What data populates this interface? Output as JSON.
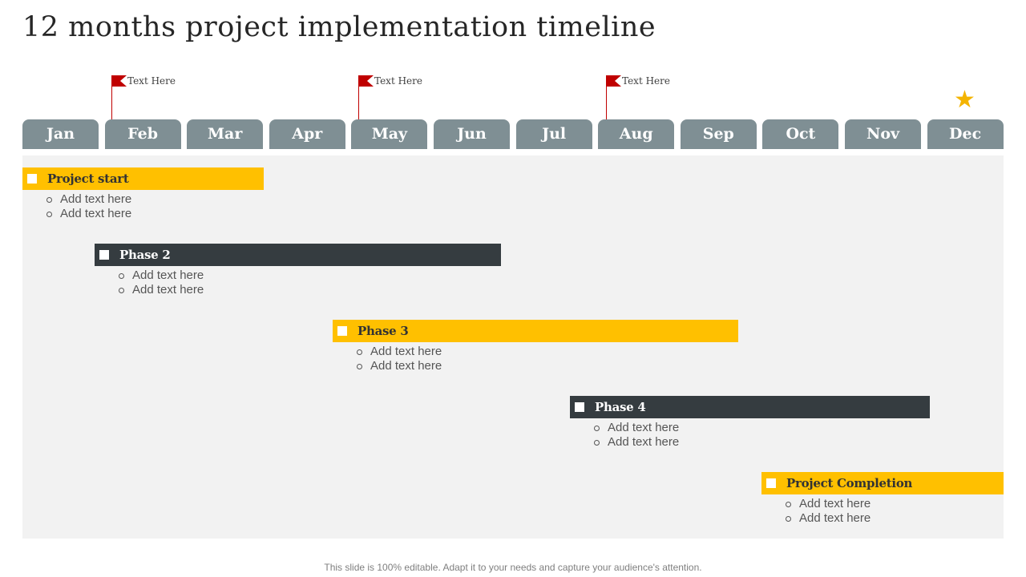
{
  "title": "12 months project implementation timeline",
  "flags": [
    {
      "text": "Text Here"
    },
    {
      "text": "Text Here"
    },
    {
      "text": "Text Here"
    }
  ],
  "star_icon": "star-icon",
  "months": [
    "Jan",
    "Feb",
    "Mar",
    "Apr",
    "May",
    "Jun",
    "Jul",
    "Aug",
    "Sep",
    "Oct",
    "Nov",
    "Dec"
  ],
  "phases": [
    {
      "label": "Project start",
      "style": "yellow",
      "items": [
        "Add text here",
        "Add text here"
      ]
    },
    {
      "label": "Phase 2",
      "style": "dark",
      "items": [
        "Add text here",
        "Add text here"
      ]
    },
    {
      "label": "Phase 3",
      "style": "yellow",
      "items": [
        "Add text here",
        "Add text here"
      ]
    },
    {
      "label": "Phase 4",
      "style": "dark",
      "items": [
        "Add text here",
        "Add text here"
      ]
    },
    {
      "label": "Project Completion",
      "style": "yellow",
      "items": [
        "Add text here",
        "Add text here"
      ]
    }
  ],
  "colors": {
    "accent": "#ffc000",
    "dark": "#353c40",
    "month": "#7f8f94",
    "flag": "#c00000",
    "star": "#f4b400"
  },
  "footer": "This slide is 100% editable. Adapt it to your needs and capture your audience's attention."
}
